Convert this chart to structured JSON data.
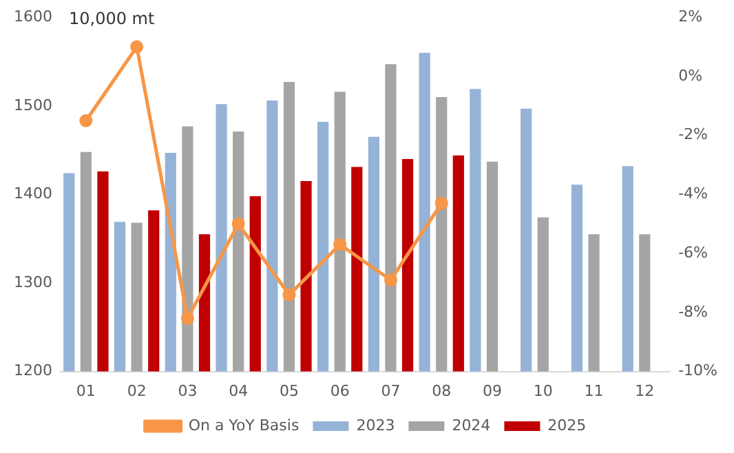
{
  "chart_data": {
    "type": "bar",
    "ylabel": "10,000 mt",
    "categories": [
      "01",
      "02",
      "03",
      "04",
      "05",
      "06",
      "07",
      "08",
      "09",
      "10",
      "11",
      "12"
    ],
    "series": [
      {
        "name": "2023",
        "color": "#95b3d7",
        "values": [
          1424,
          1369,
          1447,
          1502,
          1506,
          1482,
          1465,
          1560,
          1519,
          1497,
          1411,
          1432
        ]
      },
      {
        "name": "2024",
        "color": "#a5a5a5",
        "values": [
          1448,
          1368,
          1477,
          1471,
          1527,
          1516,
          1547,
          1510,
          1437,
          1374,
          1355,
          1355
        ]
      },
      {
        "name": "2025",
        "color": "#c00000",
        "values": [
          1426,
          1382,
          1355,
          1398,
          1415,
          1431,
          1440,
          1444,
          null,
          null,
          null,
          null
        ]
      },
      {
        "name": "On a YoY Basis",
        "type": "line",
        "axis": "y2",
        "color": "#f79646",
        "values": [
          -1.5,
          1.0,
          -8.2,
          -5.0,
          -7.4,
          -5.7,
          -6.9,
          -4.3,
          null,
          null,
          null,
          null
        ]
      }
    ],
    "ylim": [
      1200,
      1600
    ],
    "yticks": [
      1200,
      1300,
      1400,
      1500,
      1600
    ],
    "y2lim": [
      -10,
      2
    ],
    "y2ticks": [
      {
        "value": -10,
        "label": "-10%"
      },
      {
        "value": -8,
        "label": "-8%"
      },
      {
        "value": -6,
        "label": "-6%"
      },
      {
        "value": -4,
        "label": "-4%"
      },
      {
        "value": -2,
        "label": "-2%"
      },
      {
        "value": 0,
        "label": "0%"
      },
      {
        "value": 2,
        "label": "2%"
      }
    ],
    "grid": false,
    "legend": "bottom",
    "marker": "circle",
    "line_style": "solid"
  }
}
